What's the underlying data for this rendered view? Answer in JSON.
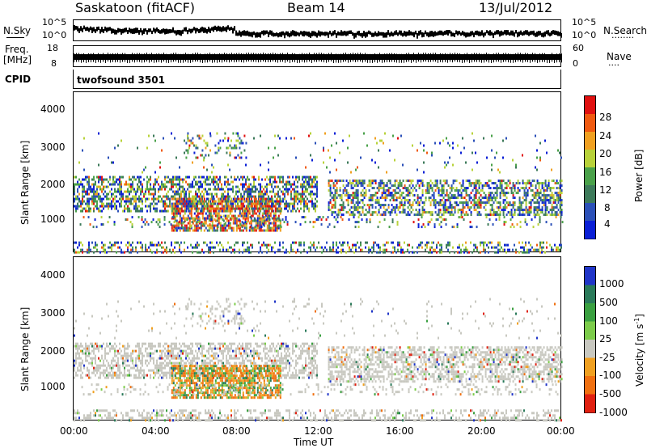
{
  "header": {
    "station": "Saskatoon (fitACF)",
    "beam": "Beam 14",
    "date": "13/Jul/2012"
  },
  "strip_nsky": {
    "left_label": "N.Sky",
    "right_label": "N.Search",
    "tick_top": "10^5",
    "tick_bottom": "10^0",
    "tick_top_r": "10^5",
    "tick_bottom_r": "10^0",
    "dots": "........"
  },
  "strip_freq": {
    "left_label_1": "Freq.",
    "left_label_2": "[MHz]",
    "right_label": "Nave",
    "tick_left_top": "18",
    "tick_left_bottom": "8",
    "tick_right_top": "60",
    "tick_right_bottom": "0",
    "dots": "...."
  },
  "strip_cpid": {
    "label": "CPID",
    "value": "twofsound 3501"
  },
  "power_panel": {
    "ylabel": "Slant Range [km]",
    "yticks": [
      "4000",
      "3000",
      "2000",
      "1000"
    ],
    "cbar_label": "Power [dB]",
    "cbar_ticks": [
      "28",
      "24",
      "20",
      "16",
      "12",
      "8",
      "4"
    ]
  },
  "velocity_panel": {
    "ylabel": "Slant Range [km]",
    "yticks": [
      "4000",
      "3000",
      "2000",
      "1000"
    ],
    "cbar_label": "Velocity [m s",
    "cbar_label_sup": "-1",
    "cbar_label_end": "]",
    "cbar_ticks": [
      "1000",
      "500",
      "100",
      "25",
      "-25",
      "-100",
      "-500",
      "-1000"
    ]
  },
  "xaxis": {
    "label": "Time UT",
    "ticks": [
      "00:00",
      "04:00",
      "08:00",
      "12:00",
      "16:00",
      "20:00",
      "00:00"
    ]
  },
  "colors": {
    "power_scale": [
      "#0a1fd6",
      "#2b50b8",
      "#3d7a5a",
      "#4aa14a",
      "#b8d23a",
      "#f0a020",
      "#f05a10",
      "#e01010"
    ],
    "velocity_scale": [
      "#2035c8",
      "#2a7a5a",
      "#3aa040",
      "#7ccc4a",
      "#c8c8c0",
      "#f0a020",
      "#f07010",
      "#e02010"
    ]
  },
  "chart_data": {
    "type": "heatmap",
    "title": "Saskatoon (fitACF)   Beam 14   13/Jul/2012",
    "xlabel": "Time UT",
    "ylabel": "Slant Range [km]",
    "xlim": [
      "00:00",
      "24:00"
    ],
    "ylim": [
      180,
      4600
    ],
    "series": [
      {
        "name": "Power [dB]",
        "range": [
          0,
          30
        ]
      },
      {
        "name": "Velocity [m s-1]",
        "range": [
          -1000,
          1000
        ]
      }
    ]
  }
}
